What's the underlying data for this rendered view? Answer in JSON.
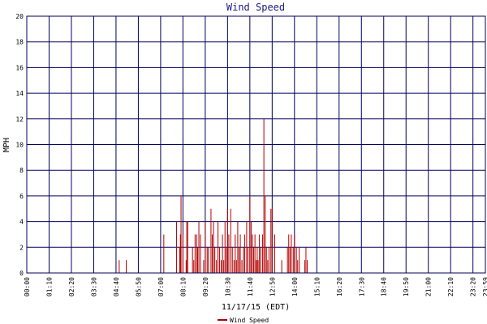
{
  "chart_data": {
    "type": "bar",
    "title": "Wind Speed",
    "xlabel": "11/17/15 (EDT)",
    "ylabel": "MPH",
    "ylim": [
      0,
      20
    ],
    "yticks": [
      "0",
      "2",
      "4",
      "6",
      "8",
      "10",
      "12",
      "14",
      "16",
      "18",
      "20"
    ],
    "xlim": [
      0,
      1439
    ],
    "xticks": [
      "00:00",
      "01:10",
      "02:20",
      "03:30",
      "04:40",
      "05:50",
      "07:00",
      "08:10",
      "09:20",
      "10:30",
      "11:40",
      "12:50",
      "14:00",
      "15:10",
      "16:20",
      "17:30",
      "18:40",
      "19:50",
      "21:00",
      "22:10",
      "23:20",
      "23:59"
    ],
    "grid": true,
    "legend_position": "bottom",
    "series": [
      {
        "name": "Wind Speed",
        "color": "#b40000",
        "x": [
          290,
          312,
          430,
          470,
          480,
          482,
          484,
          490,
          500,
          502,
          505,
          520,
          524,
          528,
          533,
          536,
          540,
          545,
          555,
          560,
          566,
          570,
          578,
          582,
          586,
          590,
          595,
          600,
          605,
          610,
          614,
          618,
          622,
          626,
          630,
          634,
          640,
          645,
          650,
          654,
          658,
          662,
          666,
          670,
          675,
          680,
          684,
          690,
          694,
          700,
          704,
          708,
          712,
          716,
          720,
          723,
          726,
          730,
          734,
          740,
          744,
          748,
          752,
          756,
          760,
          766,
          770,
          778,
          800,
          818,
          822,
          826,
          830,
          836,
          840,
          846,
          850,
          855,
          872,
          876,
          880
        ],
        "y": [
          1,
          1,
          3,
          4,
          2,
          3,
          6,
          3,
          1,
          4,
          4,
          2,
          1,
          3,
          3,
          2,
          4,
          3,
          1,
          4,
          2,
          2,
          5,
          3,
          4,
          2,
          1,
          4,
          2,
          1,
          3,
          1,
          4,
          2,
          5,
          3,
          5,
          2,
          1,
          3,
          1,
          4,
          2,
          3,
          1,
          2,
          3,
          4,
          2,
          6,
          4,
          3,
          2,
          3,
          1,
          2,
          1,
          3,
          2,
          3,
          12,
          6,
          2,
          1,
          2,
          5,
          5,
          3,
          1,
          2,
          3,
          2,
          3,
          2,
          3,
          2,
          1,
          2,
          1,
          2,
          1
        ]
      }
    ]
  }
}
